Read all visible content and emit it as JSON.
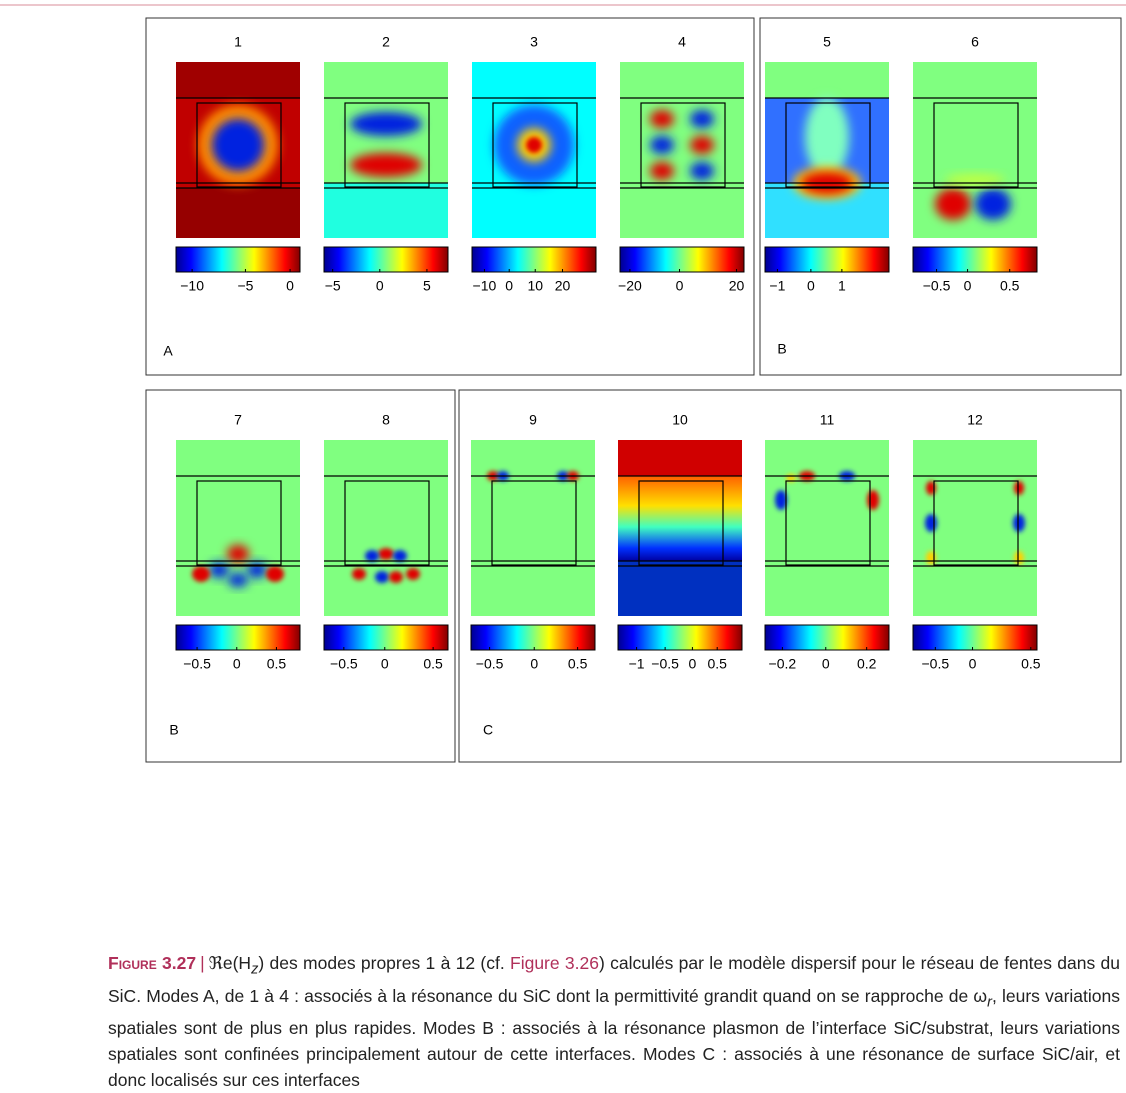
{
  "panels": [
    {
      "title": "1",
      "ticks": [
        "−10",
        "−5",
        "0"
      ]
    },
    {
      "title": "2",
      "ticks": [
        "−5",
        "0",
        "5"
      ]
    },
    {
      "title": "3",
      "ticks": [
        "−10",
        "0",
        "10",
        "20"
      ]
    },
    {
      "title": "4",
      "ticks": [
        "−20",
        "0",
        "20"
      ]
    },
    {
      "title": "5",
      "ticks": [
        "−1",
        "0",
        "1"
      ]
    },
    {
      "title": "6",
      "ticks": [
        "−0.5",
        "0",
        "0.5"
      ]
    },
    {
      "title": "7",
      "ticks": [
        "−0.5",
        "0",
        "0.5"
      ]
    },
    {
      "title": "8",
      "ticks": [
        "−0.5",
        "0",
        "0.5"
      ]
    },
    {
      "title": "9",
      "ticks": [
        "−0.5",
        "0",
        "0.5"
      ]
    },
    {
      "title": "10",
      "ticks": [
        "−1",
        "−0.5",
        "0",
        "0.5"
      ]
    },
    {
      "title": "11",
      "ticks": [
        "−0.2",
        "0",
        "0.2"
      ]
    },
    {
      "title": "12",
      "ticks": [
        "−0.5",
        "0",
        "0.5"
      ]
    }
  ],
  "group_labels": [
    "A",
    "B",
    "B",
    "C"
  ],
  "caption": {
    "label": "Figure",
    "number": "3.27",
    "separator": "|",
    "text_1": "ℜe(H",
    "sub_1": "z",
    "text_2": ") des modes propres 1 à 12 (cf. ",
    "link": "Figure 3.26",
    "text_3": ") calculés par le modèle dispersif pour le réseau de fentes dans du SiC. Modes A, de 1 à 4 : associés à la résonance du SiC dont la permittivité grandit quand on se rapproche de ω",
    "sub_2": "r",
    "text_4": ", leurs variations spatiales sont de plus en plus rapides. Modes B : associés à la résonance plasmon de l’interface SiC/substrat, leurs variations spatiales sont confinées principalement autour de cette interfaces. Modes C : associés à une résonance de surface SiC/air, et donc localisés sur ces interfaces"
  }
}
